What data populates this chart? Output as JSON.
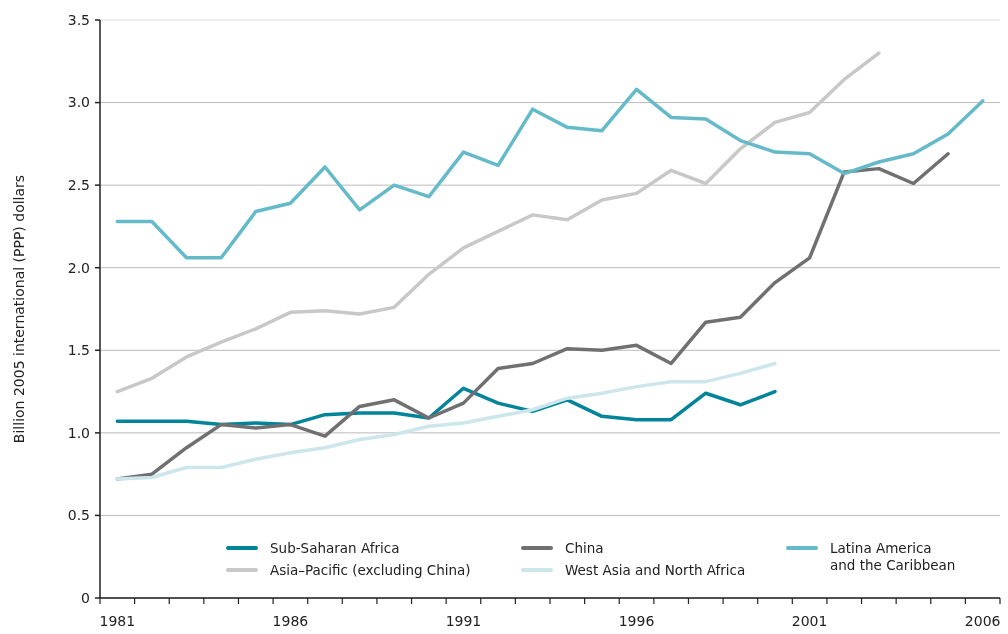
{
  "chart_data": {
    "type": "line",
    "ylabel": "Billion 2005 international (PPP) dollars",
    "categories": [
      "1981",
      null,
      null,
      null,
      null,
      "1986",
      null,
      null,
      null,
      null,
      "1991",
      null,
      null,
      null,
      null,
      "1996",
      null,
      null,
      null,
      null,
      "2001",
      null,
      null,
      null,
      null,
      "2006"
    ],
    "ylim": [
      0,
      3.5
    ],
    "yticks": [
      0,
      0.5,
      {
        "value": 1,
        "label": "1.0"
      },
      1.5,
      {
        "value": 2,
        "label": "2.0"
      },
      2.5,
      {
        "value": 3,
        "label": "3.0"
      },
      3.5
    ],
    "grid": "y",
    "legend": "bottom",
    "line_style": "solid",
    "series": [
      {
        "name": "Sub-Saharan Africa",
        "color": "#00849a",
        "values": [
          1.07,
          1.07,
          1.07,
          1.05,
          1.06,
          1.05,
          1.11,
          1.12,
          1.12,
          1.09,
          1.27,
          1.18,
          1.13,
          1.2,
          1.1,
          1.08,
          1.08,
          1.24,
          1.17,
          1.25,
          null,
          null,
          null,
          null,
          null,
          null
        ]
      },
      {
        "name": "Asia–Pacific (excluding China)",
        "color": "#c8c8c8",
        "values": [
          1.25,
          1.33,
          1.46,
          1.55,
          1.63,
          1.73,
          1.74,
          1.72,
          1.76,
          1.96,
          2.12,
          2.22,
          2.32,
          2.29,
          2.41,
          2.45,
          2.59,
          2.51,
          2.72,
          2.88,
          2.94,
          3.14,
          3.3,
          null,
          null,
          null
        ]
      },
      {
        "name": "China",
        "color": "#707072",
        "values": [
          0.72,
          0.75,
          0.91,
          1.05,
          1.03,
          1.05,
          0.98,
          1.16,
          1.2,
          1.09,
          1.18,
          1.39,
          1.42,
          1.51,
          1.5,
          1.53,
          1.42,
          1.67,
          1.7,
          1.91,
          2.06,
          2.58,
          2.6,
          2.51,
          2.69,
          null
        ]
      },
      {
        "name": "West Asia and North Africa",
        "color": "#cde6ec",
        "values": [
          0.72,
          0.73,
          0.79,
          0.79,
          0.84,
          0.88,
          0.91,
          0.96,
          0.99,
          1.04,
          1.06,
          1.1,
          1.14,
          1.21,
          1.24,
          1.28,
          1.31,
          1.31,
          1.36,
          1.42,
          null,
          null,
          null,
          null,
          null,
          null
        ]
      },
      {
        "name": "Latina America and the Caribbean",
        "color": "#64bac8",
        "values": [
          2.28,
          2.28,
          2.06,
          2.06,
          2.34,
          2.39,
          2.61,
          2.35,
          2.5,
          2.43,
          2.7,
          2.62,
          2.96,
          2.85,
          2.83,
          3.08,
          2.91,
          2.9,
          2.77,
          2.7,
          2.69,
          2.57,
          2.64,
          2.69,
          2.81,
          3.01
        ]
      }
    ]
  }
}
